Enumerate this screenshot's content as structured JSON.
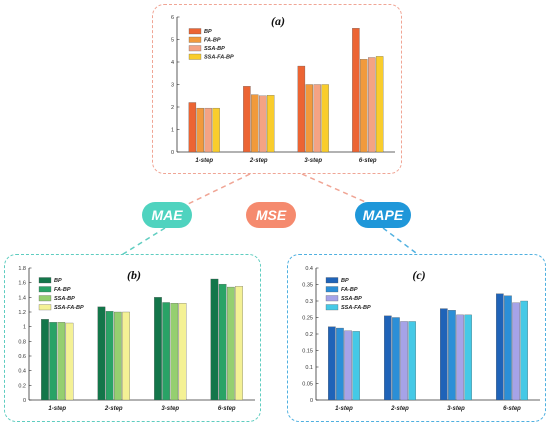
{
  "metrics": {
    "mae": "MAE",
    "mse": "MSE",
    "mape": "MAPE"
  },
  "chart_data": [
    {
      "panel_label": "(a)",
      "type": "bar",
      "metric": "MSE",
      "categories": [
        "1-step",
        "2-step",
        "3-step",
        "6-step"
      ],
      "series": [
        {
          "name": "BP",
          "color": "#ec6433",
          "values": [
            2.2,
            2.92,
            3.82,
            5.5
          ]
        },
        {
          "name": "FA-BP",
          "color": "#f19a3c",
          "values": [
            1.95,
            2.55,
            3.0,
            4.12
          ]
        },
        {
          "name": "SSA-BP",
          "color": "#f4a384",
          "values": [
            1.95,
            2.5,
            3.0,
            4.2
          ]
        },
        {
          "name": "SSA-FA-BP",
          "color": "#f9cd2c",
          "values": [
            1.95,
            2.52,
            3.0,
            4.25
          ]
        }
      ],
      "ylim": [
        0,
        6
      ],
      "yticks": [
        "0",
        "1",
        "2",
        "3",
        "4",
        "5",
        "6"
      ],
      "legend": "top-left",
      "grid": false
    },
    {
      "panel_label": "(b)",
      "type": "bar",
      "metric": "MAE",
      "categories": [
        "1-step",
        "2-step",
        "3-step",
        "6-step"
      ],
      "series": [
        {
          "name": "BP",
          "color": "#13764a",
          "values": [
            1.1,
            1.27,
            1.4,
            1.65
          ]
        },
        {
          "name": "FA-BP",
          "color": "#29a366",
          "values": [
            1.06,
            1.21,
            1.33,
            1.58
          ]
        },
        {
          "name": "SSA-BP",
          "color": "#95cf70",
          "values": [
            1.06,
            1.2,
            1.32,
            1.54
          ]
        },
        {
          "name": "SSA-FA-BP",
          "color": "#f4f195",
          "values": [
            1.05,
            1.2,
            1.32,
            1.55
          ]
        }
      ],
      "ylim": [
        0,
        1.8
      ],
      "yticks": [
        "0",
        "0.2",
        "0.4",
        "0.6",
        "0.8",
        "1",
        "1.2",
        "1.4",
        "1.6",
        "1.8"
      ],
      "legend": "top-left",
      "grid": false
    },
    {
      "panel_label": "(c)",
      "type": "bar",
      "metric": "MAPE",
      "categories": [
        "1-step",
        "2-step",
        "3-step",
        "6-step"
      ],
      "series": [
        {
          "name": "BP",
          "color": "#1f63b8",
          "values": [
            0.222,
            0.255,
            0.277,
            0.322
          ]
        },
        {
          "name": "FA-BP",
          "color": "#2b8fd7",
          "values": [
            0.218,
            0.25,
            0.272,
            0.316
          ]
        },
        {
          "name": "SSA-BP",
          "color": "#a6a3e8",
          "values": [
            0.21,
            0.238,
            0.258,
            0.295
          ]
        },
        {
          "name": "SSA-FA-BP",
          "color": "#45c9e6",
          "values": [
            0.208,
            0.238,
            0.258,
            0.3
          ]
        }
      ],
      "ylim": [
        0,
        0.4
      ],
      "yticks": [
        "0",
        "0.05",
        "0.1",
        "0.15",
        "0.2",
        "0.25",
        "0.3",
        "0.35",
        "0.4"
      ],
      "legend": "top-left",
      "grid": false
    }
  ]
}
